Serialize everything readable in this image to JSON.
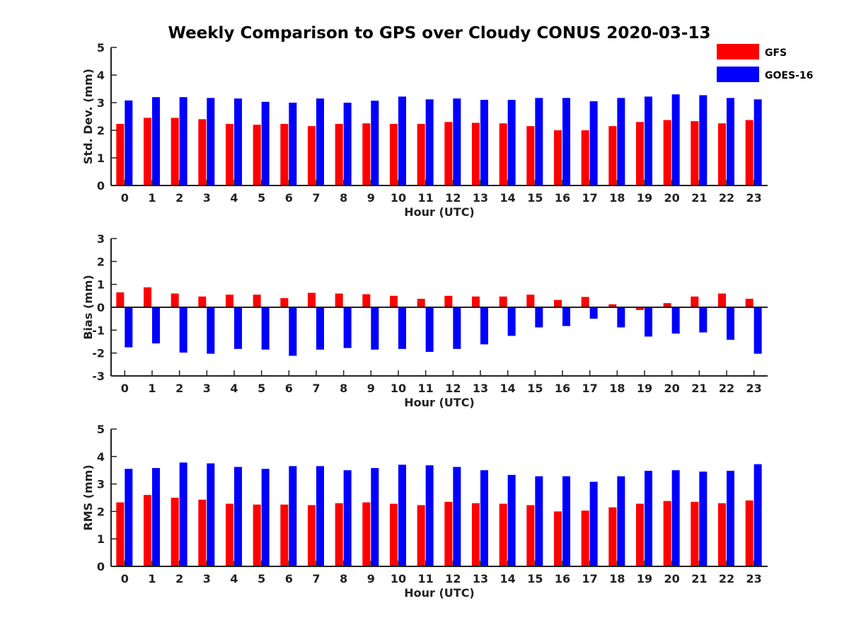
{
  "colors": {
    "GFS": "#ff0000",
    "GOES-16": "#0000ff",
    "axis": "#222222"
  },
  "chart_data": {
    "title": "Weekly Comparison to GPS over Cloudy CONUS 2020-03-13",
    "legend": {
      "placement": "top-right",
      "entries": [
        "GFS",
        "GOES-16"
      ]
    },
    "subplots": [
      {
        "type": "bar",
        "ylabel": "Std. Dev. (mm)",
        "xlabel": "Hour (UTC)",
        "ylim": [
          0,
          5
        ],
        "yticks": [
          0,
          1,
          2,
          3,
          4,
          5
        ],
        "categories": [
          "0",
          "1",
          "2",
          "3",
          "4",
          "5",
          "6",
          "7",
          "8",
          "9",
          "10",
          "11",
          "12",
          "13",
          "14",
          "15",
          "16",
          "17",
          "18",
          "19",
          "20",
          "21",
          "22",
          "23"
        ],
        "series": [
          {
            "name": "GFS",
            "values": [
              2.23,
              2.45,
              2.45,
              2.4,
              2.23,
              2.2,
              2.23,
              2.15,
              2.23,
              2.25,
              2.23,
              2.23,
              2.3,
              2.27,
              2.25,
              2.15,
              2.0,
              2.0,
              2.15,
              2.3,
              2.37,
              2.33,
              2.25,
              2.37
            ]
          },
          {
            "name": "GOES-16",
            "values": [
              3.08,
              3.2,
              3.2,
              3.17,
              3.15,
              3.03,
              3.0,
              3.15,
              3.0,
              3.07,
              3.22,
              3.12,
              3.15,
              3.1,
              3.1,
              3.17,
              3.17,
              3.05,
              3.17,
              3.22,
              3.3,
              3.27,
              3.17,
              3.12
            ]
          }
        ]
      },
      {
        "type": "bar",
        "ylabel": "Bias (mm)",
        "xlabel": "Hour (UTC)",
        "ylim": [
          -3,
          3
        ],
        "yticks": [
          -3,
          -2,
          -1,
          0,
          1,
          2,
          3
        ],
        "categories": [
          "0",
          "1",
          "2",
          "3",
          "4",
          "5",
          "6",
          "7",
          "8",
          "9",
          "10",
          "11",
          "12",
          "13",
          "14",
          "15",
          "16",
          "17",
          "18",
          "19",
          "20",
          "21",
          "22",
          "23"
        ],
        "series": [
          {
            "name": "GFS",
            "values": [
              0.65,
              0.87,
              0.6,
              0.47,
              0.55,
              0.55,
              0.4,
              0.63,
              0.6,
              0.57,
              0.5,
              0.37,
              0.5,
              0.47,
              0.47,
              0.55,
              0.32,
              0.45,
              0.13,
              -0.12,
              0.18,
              0.47,
              0.6,
              0.37
            ]
          },
          {
            "name": "GOES-16",
            "values": [
              -1.75,
              -1.58,
              -1.98,
              -2.03,
              -1.82,
              -1.85,
              -2.12,
              -1.85,
              -1.78,
              -1.85,
              -1.82,
              -1.95,
              -1.82,
              -1.62,
              -1.25,
              -0.88,
              -0.82,
              -0.5,
              -0.88,
              -1.28,
              -1.15,
              -1.1,
              -1.42,
              -2.03
            ]
          }
        ]
      },
      {
        "type": "bar",
        "ylabel": "RMS (mm)",
        "xlabel": "Hour (UTC)",
        "ylim": [
          0,
          5
        ],
        "yticks": [
          0,
          1,
          2,
          3,
          4,
          5
        ],
        "categories": [
          "0",
          "1",
          "2",
          "3",
          "4",
          "5",
          "6",
          "7",
          "8",
          "9",
          "10",
          "11",
          "12",
          "13",
          "14",
          "15",
          "16",
          "17",
          "18",
          "19",
          "20",
          "21",
          "22",
          "23"
        ],
        "series": [
          {
            "name": "GFS",
            "values": [
              2.33,
              2.6,
              2.5,
              2.43,
              2.28,
              2.25,
              2.25,
              2.23,
              2.3,
              2.33,
              2.28,
              2.23,
              2.35,
              2.3,
              2.28,
              2.23,
              2.0,
              2.03,
              2.15,
              2.28,
              2.38,
              2.35,
              2.3,
              2.4
            ]
          },
          {
            "name": "GOES-16",
            "values": [
              3.55,
              3.58,
              3.78,
              3.75,
              3.62,
              3.55,
              3.65,
              3.65,
              3.5,
              3.58,
              3.7,
              3.68,
              3.62,
              3.5,
              3.33,
              3.28,
              3.28,
              3.08,
              3.28,
              3.48,
              3.5,
              3.45,
              3.48,
              3.72
            ]
          }
        ]
      }
    ]
  }
}
